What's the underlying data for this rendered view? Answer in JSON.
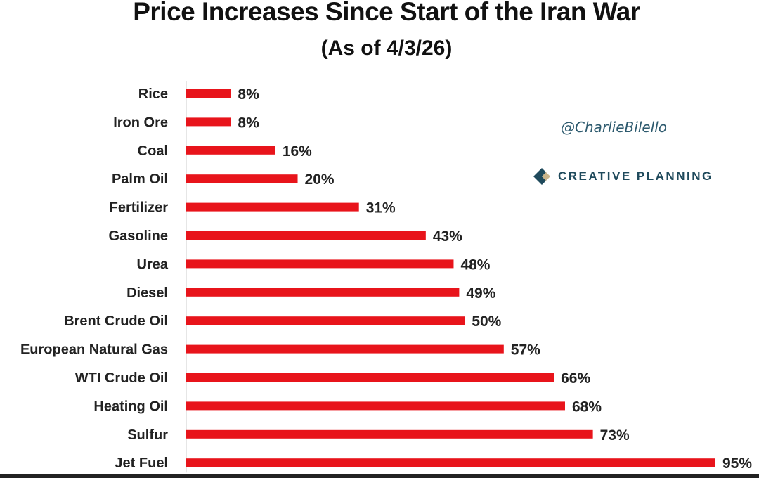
{
  "chart_data": {
    "type": "bar",
    "orientation": "horizontal",
    "title": "Price Increases Since Start of the Iran War",
    "subtitle": "(As of 4/3/26)",
    "categories": [
      "Rice",
      "Iron Ore",
      "Coal",
      "Palm Oil",
      "Fertilizer",
      "Gasoline",
      "Urea",
      "Diesel",
      "Brent Crude Oil",
      "European Natural Gas",
      "WTI Crude Oil",
      "Heating Oil",
      "Sulfur",
      "Jet Fuel"
    ],
    "values": [
      8,
      8,
      16,
      20,
      31,
      43,
      48,
      49,
      50,
      57,
      66,
      68,
      73,
      95
    ],
    "data_labels": [
      "8%",
      "8%",
      "16%",
      "20%",
      "31%",
      "43%",
      "48%",
      "49%",
      "50%",
      "57%",
      "66%",
      "68%",
      "73%",
      "95%"
    ],
    "unit": "%",
    "xlim": [
      0,
      95
    ],
    "grid": false,
    "legend": "none",
    "bar_color": "#e8141b"
  },
  "branding": {
    "handle": "@CharlieBilello",
    "company": "CREATIVE PLANNING",
    "logo_icon": "creative-planning-logo",
    "color": "#2d5a6e"
  }
}
